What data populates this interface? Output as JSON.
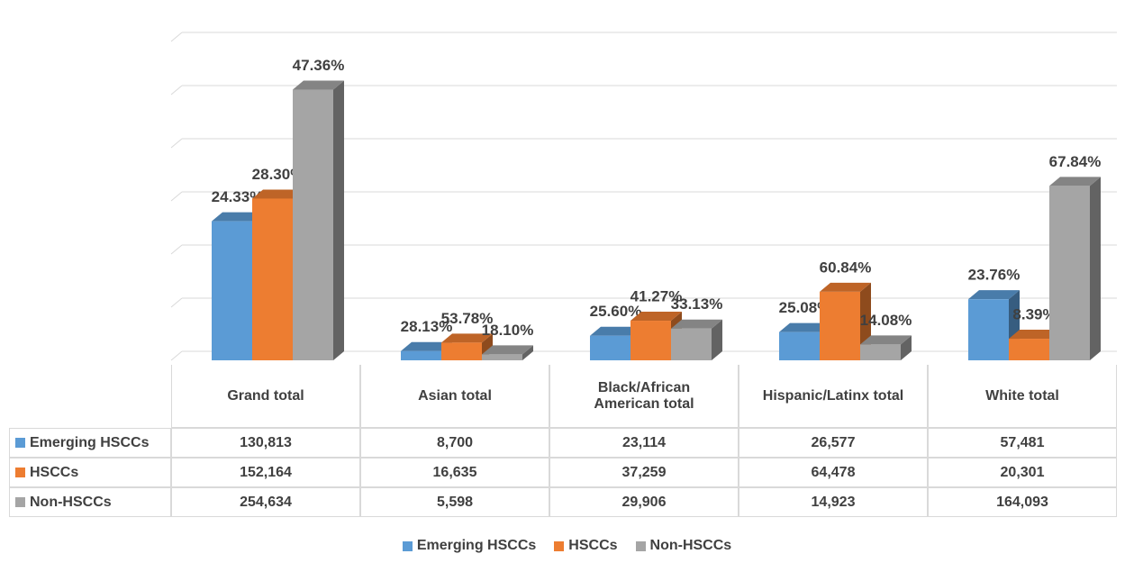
{
  "chart_data": {
    "type": "bar3d",
    "categories": [
      "Grand total",
      "Asian total",
      "Black/African American total",
      "Hispanic/Latinx total",
      "White total"
    ],
    "series": [
      {
        "name": "Emerging HSCCs",
        "color": "#5b9bd5",
        "values": [
          130813,
          8700,
          23114,
          26577,
          57481
        ],
        "value_labels": [
          "130,813",
          "8,700",
          "23,114",
          "26,577",
          "57,481"
        ],
        "data_labels": [
          "24.33%",
          "28.13%",
          "25.60%",
          "25.08%",
          "23.76%"
        ]
      },
      {
        "name": "HSCCs",
        "color": "#ed7d31",
        "values": [
          152164,
          16635,
          37259,
          64478,
          20301
        ],
        "value_labels": [
          "152,164",
          "16,635",
          "37,259",
          "64,478",
          "20,301"
        ],
        "data_labels": [
          "28.30%",
          "53.78%",
          "41.27%",
          "60.84%",
          "8.39%"
        ]
      },
      {
        "name": "Non-HSCCs",
        "color": "#a5a5a5",
        "values": [
          254634,
          5598,
          29906,
          14923,
          164093
        ],
        "value_labels": [
          "254,634",
          "5,598",
          "29,906",
          "14,923",
          "164,093"
        ],
        "data_labels": [
          "47.36%",
          "18.10%",
          "33.13%",
          "14.08%",
          "67.84%"
        ]
      }
    ],
    "ylim": [
      0,
      300000
    ],
    "yticks": [
      0,
      50000,
      100000,
      150000,
      200000,
      250000,
      300000
    ],
    "grid": true,
    "legend": "bottom"
  }
}
